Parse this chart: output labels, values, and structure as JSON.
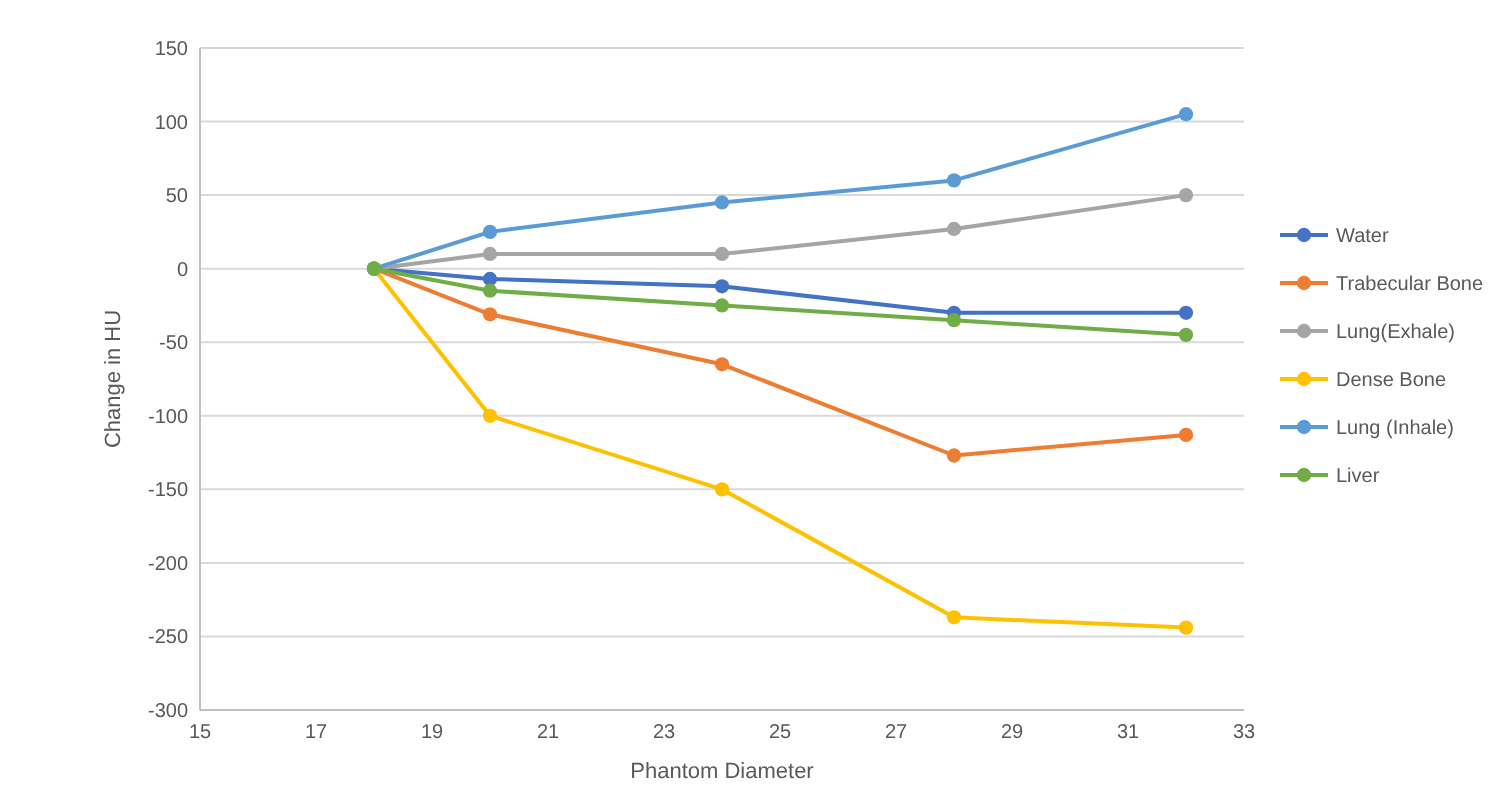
{
  "chart_data": {
    "type": "line",
    "xlabel": "Phantom Diameter",
    "ylabel": "Change in HU",
    "x": [
      18,
      20,
      24,
      28,
      32
    ],
    "series": [
      {
        "name": "Water",
        "color": "#4472c4",
        "values": [
          0,
          -7,
          -12,
          -30,
          -30
        ]
      },
      {
        "name": "Trabecular Bone",
        "color": "#ed7d31",
        "values": [
          0,
          -31,
          -65,
          -127,
          -113
        ]
      },
      {
        "name": "Lung(Exhale)",
        "color": "#a5a5a5",
        "values": [
          0,
          10,
          10,
          27,
          50
        ]
      },
      {
        "name": "Dense Bone",
        "color": "#ffc000",
        "values": [
          0,
          -100,
          -150,
          -237,
          -244
        ]
      },
      {
        "name": "Lung (Inhale)",
        "color": "#5b9bd5",
        "values": [
          0,
          25,
          45,
          60,
          105
        ]
      },
      {
        "name": "Liver",
        "color": "#70ad47",
        "values": [
          0,
          -15,
          -25,
          -35,
          -45
        ]
      }
    ],
    "xlim": [
      15,
      33
    ],
    "xticks": [
      15,
      17,
      19,
      21,
      23,
      25,
      27,
      29,
      31,
      33
    ],
    "ylim": [
      -300,
      150
    ],
    "yticks": [
      -300,
      -250,
      -200,
      -150,
      -100,
      -50,
      0,
      50,
      100,
      150
    ],
    "grid": "y",
    "legend": "right",
    "marker": "circle",
    "line_style": "solid"
  }
}
